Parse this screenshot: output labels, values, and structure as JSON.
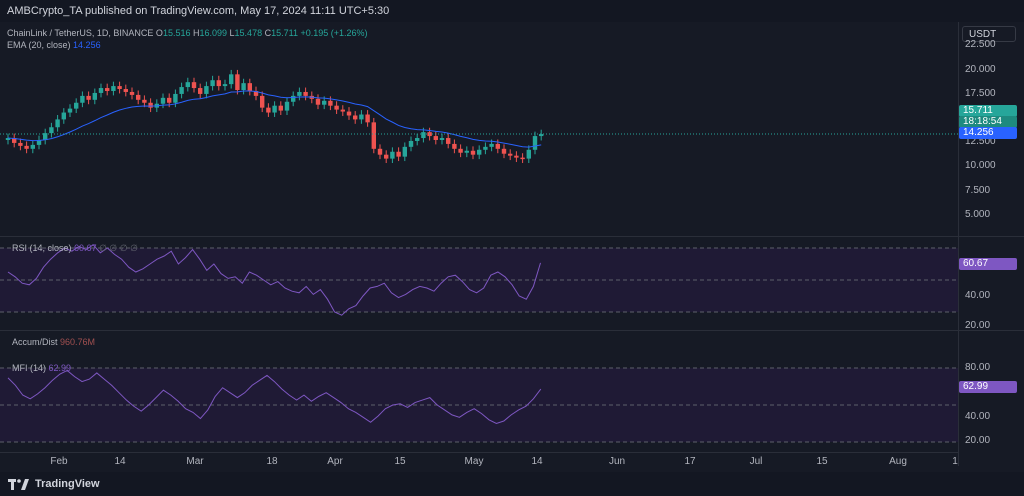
{
  "header": {
    "publish_line": "AMBCrypto_TA published on TradingView.com, May 17, 2024 11:11 UTC+5:30"
  },
  "price_pane": {
    "symbol": "ChainLink / TetherUS, 1D, BINANCE",
    "ohlc": {
      "o_label": "O",
      "o": "15.516",
      "h_label": "H",
      "h": "16.099",
      "l_label": "L",
      "l": "15.478",
      "c_label": "C",
      "c": "15.711",
      "change": "+0.195 (+1.26%)"
    },
    "ema_label": "EMA (20, close)",
    "ema_value": "14.256",
    "currency_button": "USDT",
    "axis_ticks": [
      "22.500",
      "20.000",
      "17.500",
      "12.500",
      "10.000",
      "7.500",
      "5.000"
    ],
    "last_price_tag": "15.711",
    "countdown_tag": "18:18:54",
    "ema_tag": "14.256"
  },
  "rsi_pane": {
    "label": "RSI (14, close)",
    "value": "60.67",
    "extra": "∅ ∅ ∅ ∅",
    "axis_ticks": [
      "40.00",
      "20.00"
    ],
    "tag": "60.67"
  },
  "ad_pane": {
    "label": "Accum/Dist",
    "value": "960.76M"
  },
  "mfi_pane": {
    "label": "MFI (14)",
    "value": "62.99",
    "axis_ticks": [
      "80.00",
      "40.00",
      "20.00"
    ],
    "tag": "62.99"
  },
  "time_axis": {
    "labels": [
      "Feb",
      "14",
      "Mar",
      "18",
      "Apr",
      "15",
      "May",
      "14",
      "Jun",
      "17",
      "Jul",
      "15",
      "Aug",
      "1"
    ]
  },
  "footer": {
    "brand": "TradingView"
  },
  "colors": {
    "bull": "#26a69a",
    "bear": "#ef5350",
    "ema": "#2962ff",
    "rsi": "#7e57c2",
    "background": "#161a25"
  }
}
